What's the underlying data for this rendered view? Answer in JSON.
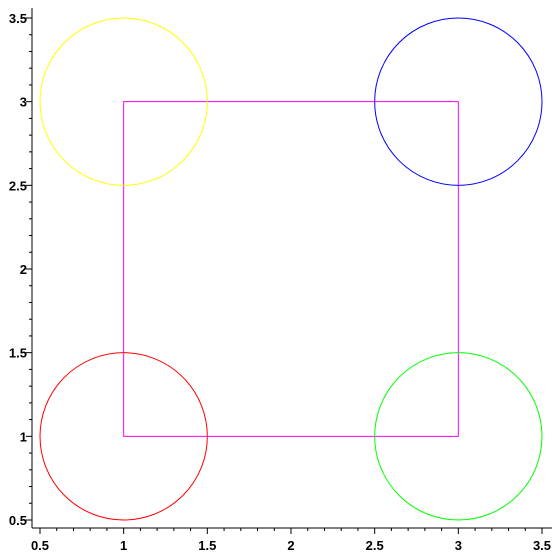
{
  "chart_data": {
    "type": "scatter",
    "title": "",
    "xlabel": "",
    "ylabel": "",
    "xlim": [
      0.5,
      3.5
    ],
    "ylim": [
      0.5,
      3.5
    ],
    "grid": false,
    "x_ticks": [
      0.5,
      1,
      1.5,
      2,
      2.5,
      3,
      3.5
    ],
    "y_ticks": [
      0.5,
      1,
      1.5,
      2,
      2.5,
      3,
      3.5
    ],
    "x_tick_labels": [
      "0.5",
      "1",
      "1.5",
      "2",
      "2.5",
      "3",
      "3.5"
    ],
    "y_tick_labels": [
      "0.5",
      "1",
      "1.5",
      "2",
      "2.5",
      "3",
      "3.5"
    ],
    "minor_tick_step": 0.1,
    "circles": [
      {
        "center": [
          1,
          3
        ],
        "radius": 0.5,
        "color": "#ffff00"
      },
      {
        "center": [
          3,
          3
        ],
        "radius": 0.5,
        "color": "#0000ff"
      },
      {
        "center": [
          1,
          1
        ],
        "radius": 0.5,
        "color": "#ff0000"
      },
      {
        "center": [
          3,
          1
        ],
        "radius": 0.5,
        "color": "#00ff00"
      }
    ],
    "polygon": {
      "points": [
        [
          1,
          1
        ],
        [
          3,
          1
        ],
        [
          3,
          3
        ],
        [
          1,
          3
        ]
      ],
      "color": "#ff00ff"
    }
  }
}
